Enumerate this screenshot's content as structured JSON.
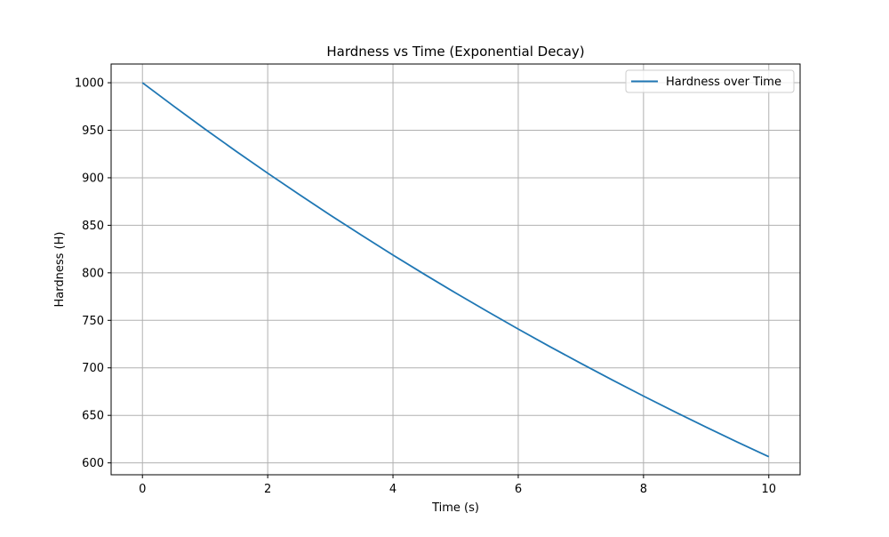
{
  "chart_data": {
    "type": "line",
    "title": "Hardness vs Time (Exponential Decay)",
    "xlabel": "Time (s)",
    "ylabel": "Hardness (H)",
    "xlim": [
      -0.5,
      10.5
    ],
    "ylim": [
      587.5,
      1019.7
    ],
    "xticks": [
      0,
      2,
      4,
      6,
      8,
      10
    ],
    "yticks": [
      600,
      650,
      700,
      750,
      800,
      850,
      900,
      950,
      1000
    ],
    "grid": true,
    "legend_position": "top-right",
    "series": [
      {
        "name": "Hardness over Time",
        "color": "#1f77b4",
        "x": [
          0,
          0.5,
          1,
          1.5,
          2,
          2.5,
          3,
          3.5,
          4,
          4.5,
          5,
          5.5,
          6,
          6.5,
          7,
          7.5,
          8,
          8.5,
          9,
          9.5,
          10
        ],
        "y": [
          1000,
          975.3,
          951.2,
          927.7,
          904.8,
          882.5,
          860.7,
          839.5,
          818.7,
          798.5,
          778.8,
          759.6,
          740.8,
          722.5,
          704.7,
          687.3,
          670.3,
          653.7,
          637.6,
          621.8,
          606.5
        ]
      }
    ]
  }
}
